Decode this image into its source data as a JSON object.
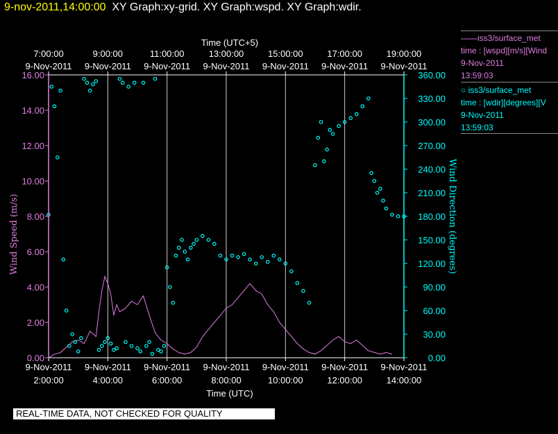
{
  "header": {
    "timestamp": "9-nov-2011,14:00:00",
    "titles": "XY Graph:xy-grid.  XY Graph:wspd.  XY Graph:wdir."
  },
  "legend": [
    {
      "name": "iss3/surface_met",
      "marker": "line",
      "desc": "time : [wspd][m/s][Wind",
      "date": "9-Nov-2011",
      "time": "13:59:03",
      "color": "#e07fe0"
    },
    {
      "name": "iss3/surface_met",
      "marker": "circle",
      "desc": "time : [wdir][degrees][V",
      "date": "9-Nov-2011",
      "time": "13:59:03",
      "color": "#00ffff"
    }
  ],
  "footer": {
    "warning": "REAL-TIME DATA, NOT CHECKED FOR QUALITY"
  },
  "chart_data": {
    "type": "scatter",
    "x_top_label": "Time (UTC+5)",
    "x_bottom_label": "Time (UTC)",
    "ylabel_left": "Wind Speed (m/s)",
    "ylabel_right": "Wind Direction (degrees)",
    "xlim_utc_hours": [
      2.0,
      14.0
    ],
    "ylim_left": [
      0,
      16
    ],
    "ylim_right": [
      0,
      360
    ],
    "grid": "vertical",
    "x_bottom_ticks": [
      {
        "hour": 2,
        "date": "9-Nov-2011",
        "time": "2:00:00"
      },
      {
        "hour": 4,
        "date": "9-Nov-2011",
        "time": "4:00:00"
      },
      {
        "hour": 6,
        "date": "9-Nov-2011",
        "time": "6:00:00"
      },
      {
        "hour": 8,
        "date": "9-Nov-2011",
        "time": "8:00:00"
      },
      {
        "hour": 10,
        "date": "9-Nov-2011",
        "time": "10:00:00"
      },
      {
        "hour": 12,
        "date": "9-Nov-2011",
        "time": "12:00:00"
      },
      {
        "hour": 14,
        "date": "9-Nov-2011",
        "time": "14:00:00"
      }
    ],
    "x_top_ticks": [
      {
        "hour": 2,
        "time": "7:00:00",
        "date": "9-Nov-2011"
      },
      {
        "hour": 4,
        "time": "9:00:00",
        "date": "9-Nov-2011"
      },
      {
        "hour": 6,
        "time": "11:00:00",
        "date": "9-Nov-2011"
      },
      {
        "hour": 8,
        "time": "13:00:00",
        "date": "9-Nov-2011"
      },
      {
        "hour": 10,
        "time": "15:00:00",
        "date": "9-Nov-2011"
      },
      {
        "hour": 12,
        "time": "17:00:00",
        "date": "9-Nov-2011"
      },
      {
        "hour": 14,
        "time": "19:00:00",
        "date": "9-Nov-2011"
      }
    ],
    "y_left_ticks": [
      "0.00",
      "2.00",
      "4.00",
      "6.00",
      "8.00",
      "10.00",
      "12.00",
      "14.00",
      "16.00"
    ],
    "y_right_ticks": [
      "0.00",
      "30.00",
      "60.00",
      "90.00",
      "120.00",
      "150.00",
      "180.00",
      "210.00",
      "240.00",
      "270.00",
      "300.00",
      "330.00",
      "360.00"
    ],
    "series": [
      {
        "name": "wspd",
        "axis": "left",
        "style": "line",
        "color": "#e07fe0",
        "x": [
          2.0,
          2.2,
          2.4,
          2.6,
          2.8,
          3.0,
          3.2,
          3.4,
          3.6,
          3.7,
          3.8,
          3.9,
          4.0,
          4.1,
          4.2,
          4.3,
          4.4,
          4.6,
          4.8,
          5.0,
          5.2,
          5.4,
          5.6,
          5.8,
          6.0,
          6.2,
          6.4,
          6.6,
          6.8,
          7.0,
          7.2,
          7.4,
          7.6,
          7.8,
          8.0,
          8.2,
          8.4,
          8.6,
          8.8,
          9.0,
          9.2,
          9.4,
          9.6,
          9.8,
          10.0,
          10.2,
          10.4,
          10.6,
          10.8,
          11.0,
          11.2,
          11.4,
          11.6,
          11.8,
          12.0,
          12.2,
          12.4,
          12.6,
          12.8,
          13.0,
          13.2,
          13.4,
          13.6
        ],
        "y": [
          0.0,
          0.2,
          0.3,
          0.6,
          0.9,
          1.0,
          0.8,
          1.5,
          1.2,
          2.6,
          3.8,
          4.6,
          4.2,
          3.6,
          2.4,
          3.0,
          2.6,
          2.8,
          3.2,
          3.0,
          3.5,
          2.4,
          1.4,
          1.0,
          0.8,
          0.5,
          0.3,
          0.2,
          0.3,
          0.6,
          1.2,
          1.6,
          2.0,
          2.4,
          2.8,
          3.0,
          3.4,
          3.8,
          4.2,
          3.8,
          3.6,
          3.0,
          2.6,
          2.0,
          1.6,
          1.2,
          0.8,
          0.5,
          0.3,
          0.2,
          0.4,
          0.7,
          1.0,
          1.2,
          0.9,
          0.8,
          1.0,
          0.7,
          0.4,
          0.3,
          0.2,
          0.3,
          0.2
        ]
      },
      {
        "name": "wdir",
        "axis": "right",
        "style": "markers",
        "color": "#00ffff",
        "x": [
          2.0,
          2.1,
          2.2,
          2.3,
          2.4,
          2.5,
          2.6,
          2.7,
          2.8,
          2.9,
          3.0,
          3.1,
          3.2,
          3.3,
          3.4,
          3.5,
          3.6,
          3.7,
          3.8,
          3.9,
          4.0,
          4.1,
          4.2,
          4.3,
          4.4,
          4.5,
          4.6,
          4.7,
          4.8,
          4.9,
          5.0,
          5.1,
          5.2,
          5.3,
          5.4,
          5.5,
          5.6,
          5.7,
          5.8,
          5.9,
          6.0,
          6.1,
          6.2,
          6.3,
          6.4,
          6.5,
          6.6,
          6.7,
          6.8,
          6.9,
          7.0,
          7.2,
          7.4,
          7.6,
          7.8,
          8.0,
          8.2,
          8.4,
          8.6,
          8.8,
          9.0,
          9.2,
          9.4,
          9.6,
          9.8,
          10.0,
          10.2,
          10.4,
          10.6,
          10.8,
          11.0,
          11.1,
          11.2,
          11.3,
          11.4,
          11.5,
          11.6,
          11.8,
          12.0,
          12.2,
          12.4,
          12.6,
          12.8,
          12.9,
          13.0,
          13.1,
          13.2,
          13.3,
          13.4,
          13.6,
          13.8,
          14.0
        ],
        "y": [
          182,
          345,
          320,
          255,
          340,
          125,
          60,
          15,
          30,
          20,
          8,
          25,
          355,
          350,
          340,
          348,
          352,
          10,
          15,
          20,
          25,
          18,
          10,
          12,
          355,
          350,
          20,
          345,
          15,
          350,
          12,
          8,
          350,
          15,
          20,
          5,
          355,
          10,
          8,
          15,
          115,
          90,
          70,
          130,
          140,
          150,
          135,
          125,
          140,
          145,
          150,
          155,
          150,
          145,
          130,
          125,
          130,
          128,
          132,
          125,
          120,
          128,
          122,
          130,
          125,
          120,
          110,
          95,
          85,
          70,
          245,
          280,
          300,
          250,
          265,
          290,
          285,
          295,
          300,
          305,
          310,
          320,
          330,
          235,
          225,
          210,
          215,
          200,
          190,
          182,
          180,
          180
        ]
      }
    ]
  }
}
